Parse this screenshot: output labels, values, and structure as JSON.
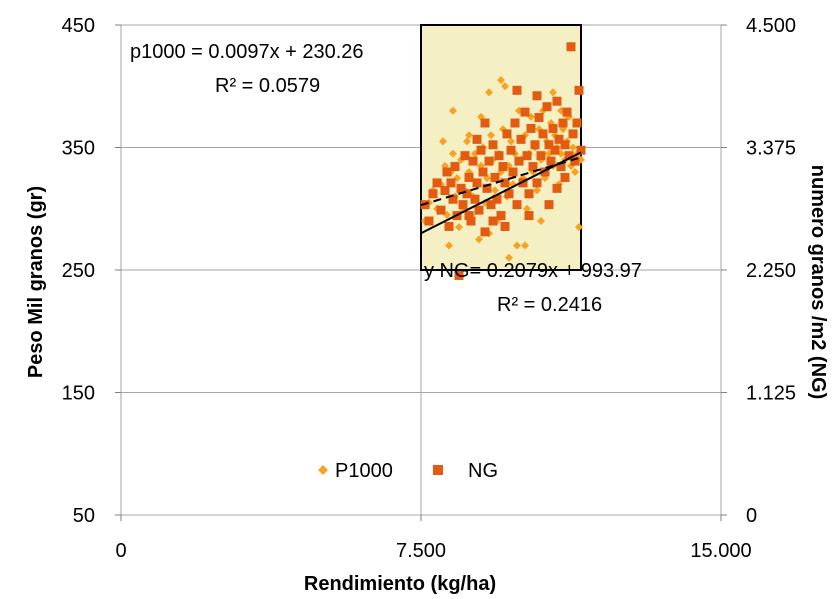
{
  "chart_data": {
    "type": "scatter",
    "xlabel": "Rendimiento (kg/ha)",
    "ylabel_left": "Peso Mil granos (gr)",
    "ylabel_right": "numero granos /m2 (NG)",
    "x_ticks": [
      "0",
      "7.500",
      "15.000"
    ],
    "y_left_ticks": [
      "50",
      "150",
      "250",
      "350",
      "450"
    ],
    "y_right_ticks": [
      "0",
      "1.125",
      "2.250",
      "3.375",
      "4.500"
    ],
    "xlim": [
      0,
      15000
    ],
    "ylim_left": [
      50,
      450
    ],
    "ylim_right": [
      0,
      4500
    ],
    "grid": true,
    "legend_position": "bottom-center",
    "highlight_box": {
      "x_range": [
        7500,
        11500
      ],
      "y_range": [
        250,
        450
      ],
      "color": "#f5efc4"
    },
    "annotations": {
      "p1000_equation": "p1000 = 0.0097x + 230.26",
      "p1000_r2": "R² = 0.0579",
      "ng_equation": "y NG= 0.2079x + 993.97",
      "ng_r2": "R² = 0.2416"
    },
    "trendlines": [
      {
        "series": "P1000",
        "style": "dashed",
        "x": [
          7500,
          11500
        ],
        "y_left": [
          303,
          342
        ]
      },
      {
        "series": "NG",
        "style": "solid",
        "x": [
          7500,
          11500
        ],
        "y_left": [
          280,
          346
        ]
      }
    ],
    "series": [
      {
        "name": "P1000",
        "axis": "left",
        "marker": "diamond",
        "color": "#f7a321",
        "points": [
          [
            7600,
            290
          ],
          [
            7700,
            305
          ],
          [
            7800,
            315
          ],
          [
            7900,
            300
          ],
          [
            8000,
            320
          ],
          [
            8100,
            335
          ],
          [
            8150,
            295
          ],
          [
            8200,
            270
          ],
          [
            8250,
            330
          ],
          [
            8300,
            345
          ],
          [
            8350,
            310
          ],
          [
            8400,
            325
          ],
          [
            8450,
            285
          ],
          [
            8500,
            340
          ],
          [
            8550,
            300
          ],
          [
            8600,
            315
          ],
          [
            8650,
            355
          ],
          [
            8700,
            330
          ],
          [
            8750,
            295
          ],
          [
            8800,
            310
          ],
          [
            8850,
            345
          ],
          [
            8900,
            320
          ],
          [
            8950,
            275
          ],
          [
            9000,
            335
          ],
          [
            9050,
            350
          ],
          [
            9100,
            305
          ],
          [
            9150,
            325
          ],
          [
            9200,
            395
          ],
          [
            9250,
            360
          ],
          [
            9300,
            340
          ],
          [
            9350,
            315
          ],
          [
            9400,
            290
          ],
          [
            9450,
            345
          ],
          [
            9500,
            330
          ],
          [
            9550,
            365
          ],
          [
            9600,
            400
          ],
          [
            9650,
            310
          ],
          [
            9700,
            335
          ],
          [
            9750,
            355
          ],
          [
            9800,
            320
          ],
          [
            9850,
            345
          ],
          [
            9900,
            270
          ],
          [
            9950,
            380
          ],
          [
            10000,
            340
          ],
          [
            10050,
            325
          ],
          [
            10100,
            360
          ],
          [
            10150,
            300
          ],
          [
            10200,
            345
          ],
          [
            10250,
            375
          ],
          [
            10300,
            330
          ],
          [
            10350,
            350
          ],
          [
            10400,
            315
          ],
          [
            10450,
            365
          ],
          [
            10500,
            340
          ],
          [
            10550,
            380
          ],
          [
            10600,
            325
          ],
          [
            10650,
            355
          ],
          [
            10700,
            345
          ],
          [
            10750,
            370
          ],
          [
            10800,
            335
          ],
          [
            10850,
            360
          ],
          [
            10900,
            350
          ],
          [
            10950,
            320
          ],
          [
            11000,
            345
          ],
          [
            11050,
            365
          ],
          [
            11100,
            340
          ],
          [
            11150,
            355
          ],
          [
            11200,
            375
          ],
          [
            11250,
            335
          ],
          [
            11300,
            350
          ],
          [
            11350,
            330
          ],
          [
            11400,
            345
          ],
          [
            11450,
            285
          ],
          [
            11500,
            340
          ],
          [
            8050,
            355
          ],
          [
            8700,
            360
          ],
          [
            9200,
            280
          ],
          [
            9700,
            260
          ],
          [
            10100,
            270
          ],
          [
            10500,
            290
          ],
          [
            11000,
            380
          ],
          [
            10800,
            395
          ],
          [
            9500,
            405
          ],
          [
            8300,
            380
          ],
          [
            9000,
            375
          ]
        ]
      },
      {
        "name": "NG",
        "axis": "right",
        "marker": "square",
        "color": "#e35b10",
        "points": [
          [
            7600,
            2850
          ],
          [
            7700,
            2700
          ],
          [
            7800,
            2950
          ],
          [
            7900,
            3050
          ],
          [
            8000,
            2800
          ],
          [
            8100,
            2980
          ],
          [
            8150,
            3150
          ],
          [
            8200,
            2650
          ],
          [
            8250,
            3050
          ],
          [
            8300,
            2900
          ],
          [
            8350,
            3200
          ],
          [
            8400,
            2750
          ],
          [
            8450,
            2200
          ],
          [
            8500,
            3000
          ],
          [
            8550,
            2850
          ],
          [
            8600,
            3300
          ],
          [
            8650,
            2950
          ],
          [
            8700,
            3100
          ],
          [
            8750,
            2700
          ],
          [
            8800,
            3250
          ],
          [
            8850,
            2900
          ],
          [
            8900,
            3050
          ],
          [
            8950,
            2800
          ],
          [
            9000,
            3350
          ],
          [
            9050,
            3150
          ],
          [
            9100,
            2600
          ],
          [
            9150,
            3000
          ],
          [
            9200,
            3250
          ],
          [
            9250,
            2850
          ],
          [
            9300,
            3400
          ],
          [
            9350,
            3100
          ],
          [
            9400,
            2900
          ],
          [
            9450,
            3300
          ],
          [
            9500,
            2750
          ],
          [
            9550,
            3200
          ],
          [
            9600,
            3050
          ],
          [
            9650,
            3500
          ],
          [
            9700,
            2950
          ],
          [
            9750,
            3350
          ],
          [
            9800,
            3150
          ],
          [
            9850,
            3600
          ],
          [
            9900,
            2850
          ],
          [
            9950,
            3250
          ],
          [
            10000,
            3450
          ],
          [
            10050,
            3050
          ],
          [
            10100,
            3700
          ],
          [
            10150,
            3300
          ],
          [
            10200,
            2950
          ],
          [
            10250,
            3550
          ],
          [
            10300,
            3200
          ],
          [
            10350,
            3400
          ],
          [
            10400,
            3050
          ],
          [
            10450,
            3650
          ],
          [
            10500,
            3300
          ],
          [
            10550,
            3500
          ],
          [
            10600,
            3150
          ],
          [
            10650,
            3750
          ],
          [
            10700,
            3400
          ],
          [
            10750,
            3250
          ],
          [
            10800,
            3550
          ],
          [
            10850,
            3350
          ],
          [
            10900,
            3800
          ],
          [
            10950,
            3450
          ],
          [
            11000,
            3200
          ],
          [
            11050,
            3600
          ],
          [
            11100,
            3400
          ],
          [
            11150,
            3700
          ],
          [
            11200,
            3300
          ],
          [
            11250,
            4300
          ],
          [
            11300,
            3500
          ],
          [
            11350,
            3250
          ],
          [
            11400,
            3600
          ],
          [
            11450,
            3900
          ],
          [
            11500,
            3350
          ],
          [
            8700,
            2750
          ],
          [
            9300,
            2700
          ],
          [
            9900,
            3900
          ],
          [
            10400,
            3850
          ],
          [
            10700,
            2850
          ],
          [
            11100,
            3100
          ],
          [
            8900,
            3450
          ],
          [
            9600,
            2650
          ],
          [
            10200,
            2750
          ],
          [
            10900,
            3000
          ],
          [
            9100,
            3600
          ]
        ]
      }
    ]
  }
}
